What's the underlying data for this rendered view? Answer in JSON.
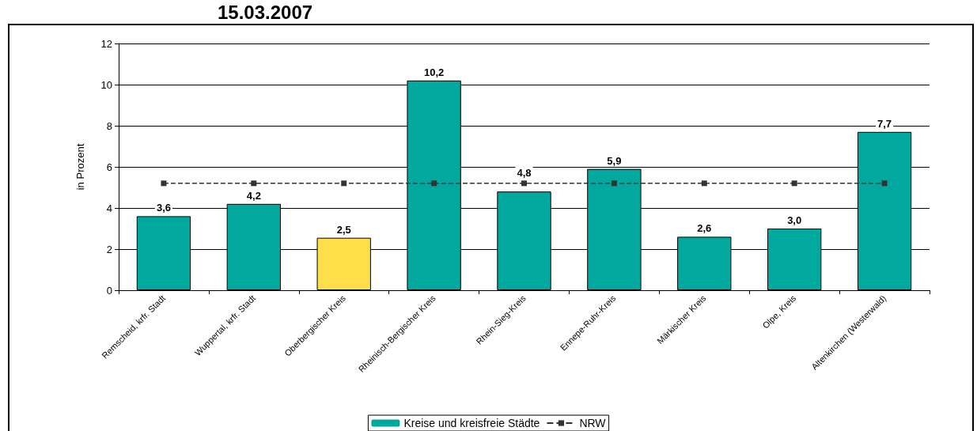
{
  "chart_data": {
    "type": "bar",
    "title": "15.03.2007",
    "ylabel": "in Prozent",
    "categories": [
      "Remscheid, krfr. Stadt",
      "Wuppertal, krfr. Stadt",
      "Oberbergischer Kreis",
      "Rheinisch-Bergischer Kreis",
      "Rhein-Sieg-Kreis",
      "Ennepe-Ruhr-Kreis",
      "Märkischer Kreis",
      "Olpe, Kreis",
      "Altenkirchen (Westerwald)"
    ],
    "series": [
      {
        "name": "Kreise und kreisfreie Städte",
        "color": "#00a89e",
        "colors": [
          "#00a89e",
          "#00a89e",
          "#ffe04a",
          "#00a89e",
          "#00a89e",
          "#00a89e",
          "#00a89e",
          "#00a89e",
          "#00a89e"
        ],
        "values": [
          3.6,
          4.2,
          2.55,
          10.2,
          4.8,
          5.9,
          2.6,
          3.0,
          7.7
        ],
        "value_labels": [
          "3,6",
          "4,2",
          "2,5",
          "10,2",
          "4,8",
          "5,9",
          "2,6",
          "3,0",
          "7,7"
        ]
      },
      {
        "name": "NRW",
        "type": "line",
        "color": "#333333",
        "marker": "square",
        "line_style": "dashed",
        "values": [
          5.2,
          5.2,
          5.2,
          5.2,
          5.2,
          5.2,
          5.2,
          5.2,
          5.2
        ]
      }
    ],
    "ylim": [
      0,
      12
    ],
    "yticks": [
      0,
      2,
      4,
      6,
      8,
      10,
      12
    ],
    "grid": "y",
    "legend": "bottom"
  }
}
